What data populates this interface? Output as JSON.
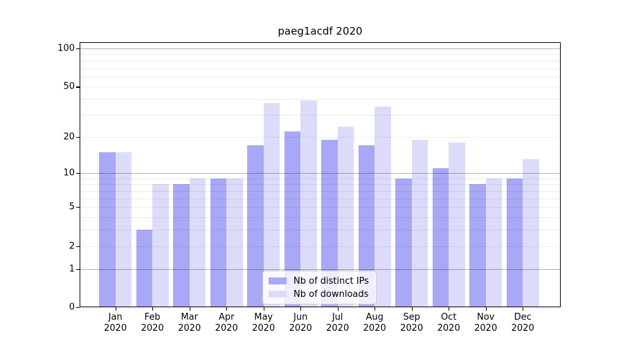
{
  "title": "paeg1acdf 2020",
  "chart_data": {
    "type": "bar",
    "title": "paeg1acdf 2020",
    "categories": [
      "Jan 2020",
      "Feb 2020",
      "Mar 2020",
      "Apr 2020",
      "May 2020",
      "Jun 2020",
      "Jul 2020",
      "Aug 2020",
      "Sep 2020",
      "Oct 2020",
      "Nov 2020",
      "Dec 2020"
    ],
    "series": [
      {
        "name": "Nb of distinct IPs",
        "color": "#a8a8f7",
        "values": [
          15,
          3,
          8,
          9,
          17,
          22,
          19,
          17,
          9,
          11,
          8,
          9
        ]
      },
      {
        "name": "Nb of downloads",
        "color": "#dcdcfa",
        "values": [
          15,
          8,
          9,
          9,
          37,
          39,
          24,
          35,
          19,
          18,
          9,
          13
        ]
      }
    ],
    "xlabel": "",
    "ylabel": "",
    "yscale": "log1p",
    "ylim": [
      0,
      100
    ],
    "ytick_values": [
      100,
      50,
      20,
      10,
      5,
      2,
      1,
      0
    ],
    "ytick_labels": [
      "100",
      "50",
      "20",
      "10",
      "5",
      "2",
      "1",
      "0"
    ],
    "minor_grid_values": [
      2,
      3,
      4,
      5,
      6,
      7,
      8,
      9,
      20,
      30,
      40,
      50,
      60,
      70,
      80,
      90
    ],
    "major_grid_values": [
      1,
      10,
      100
    ],
    "grid": true,
    "legend_position": "lower center",
    "legend": [
      "Nb of distinct IPs",
      "Nb of downloads"
    ]
  }
}
